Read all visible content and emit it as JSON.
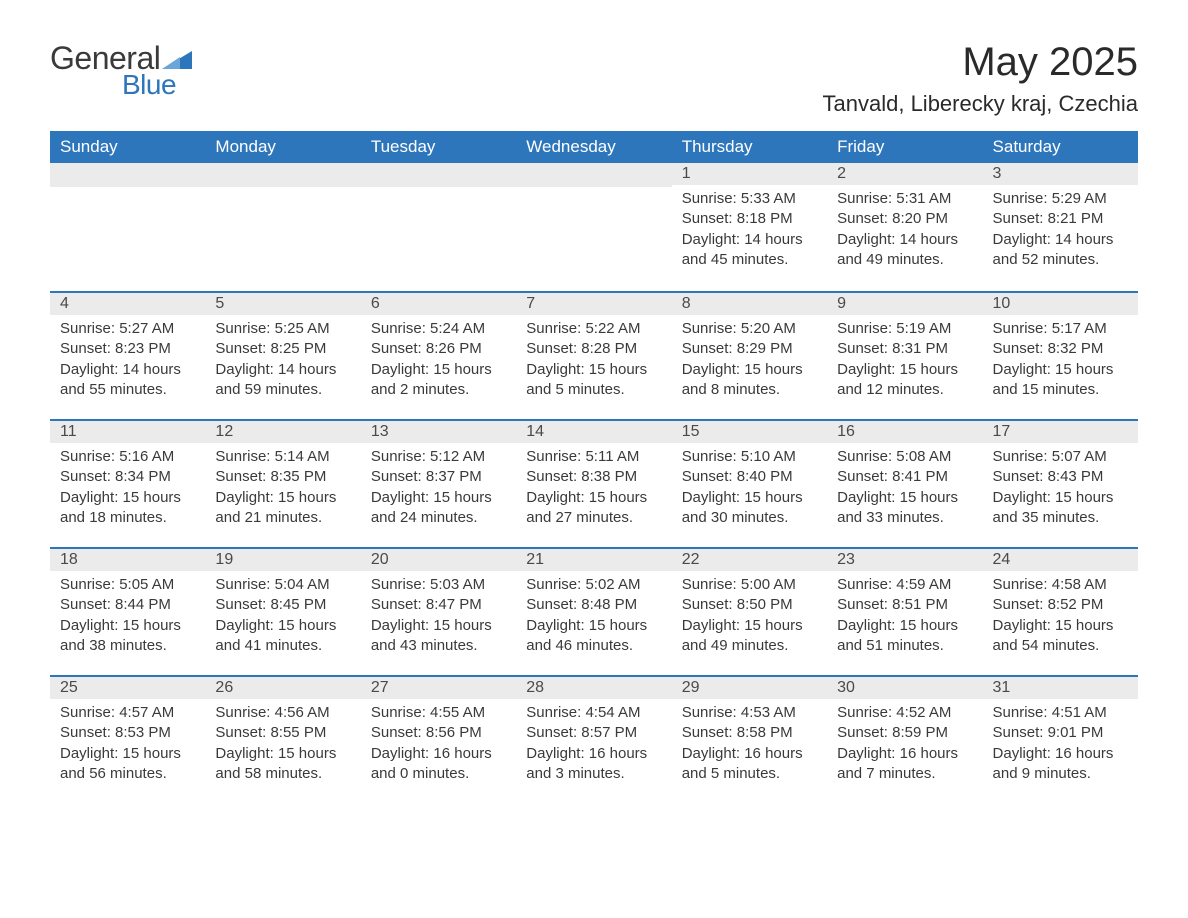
{
  "brand": {
    "name_part1": "General",
    "name_part2": "Blue",
    "text_color": "#3a3a3a",
    "accent_color": "#2d76bb"
  },
  "title": "May 2025",
  "location": "Tanvald, Liberecky kraj, Czechia",
  "colors": {
    "header_bg": "#2d76bb",
    "header_text": "#ffffff",
    "daynum_bg": "#ebebeb",
    "row_border": "#2d76bb",
    "body_text": "#3a3a3a",
    "page_bg": "#ffffff"
  },
  "fonts": {
    "title_size_pt": 30,
    "location_size_pt": 17,
    "header_size_pt": 13,
    "day_size_pt": 11
  },
  "day_headers": [
    "Sunday",
    "Monday",
    "Tuesday",
    "Wednesday",
    "Thursday",
    "Friday",
    "Saturday"
  ],
  "weeks": [
    [
      {
        "day": "",
        "sunrise": "",
        "sunset": "",
        "daylight": ""
      },
      {
        "day": "",
        "sunrise": "",
        "sunset": "",
        "daylight": ""
      },
      {
        "day": "",
        "sunrise": "",
        "sunset": "",
        "daylight": ""
      },
      {
        "day": "",
        "sunrise": "",
        "sunset": "",
        "daylight": ""
      },
      {
        "day": "1",
        "sunrise": "Sunrise: 5:33 AM",
        "sunset": "Sunset: 8:18 PM",
        "daylight": "Daylight: 14 hours and 45 minutes."
      },
      {
        "day": "2",
        "sunrise": "Sunrise: 5:31 AM",
        "sunset": "Sunset: 8:20 PM",
        "daylight": "Daylight: 14 hours and 49 minutes."
      },
      {
        "day": "3",
        "sunrise": "Sunrise: 5:29 AM",
        "sunset": "Sunset: 8:21 PM",
        "daylight": "Daylight: 14 hours and 52 minutes."
      }
    ],
    [
      {
        "day": "4",
        "sunrise": "Sunrise: 5:27 AM",
        "sunset": "Sunset: 8:23 PM",
        "daylight": "Daylight: 14 hours and 55 minutes."
      },
      {
        "day": "5",
        "sunrise": "Sunrise: 5:25 AM",
        "sunset": "Sunset: 8:25 PM",
        "daylight": "Daylight: 14 hours and 59 minutes."
      },
      {
        "day": "6",
        "sunrise": "Sunrise: 5:24 AM",
        "sunset": "Sunset: 8:26 PM",
        "daylight": "Daylight: 15 hours and 2 minutes."
      },
      {
        "day": "7",
        "sunrise": "Sunrise: 5:22 AM",
        "sunset": "Sunset: 8:28 PM",
        "daylight": "Daylight: 15 hours and 5 minutes."
      },
      {
        "day": "8",
        "sunrise": "Sunrise: 5:20 AM",
        "sunset": "Sunset: 8:29 PM",
        "daylight": "Daylight: 15 hours and 8 minutes."
      },
      {
        "day": "9",
        "sunrise": "Sunrise: 5:19 AM",
        "sunset": "Sunset: 8:31 PM",
        "daylight": "Daylight: 15 hours and 12 minutes."
      },
      {
        "day": "10",
        "sunrise": "Sunrise: 5:17 AM",
        "sunset": "Sunset: 8:32 PM",
        "daylight": "Daylight: 15 hours and 15 minutes."
      }
    ],
    [
      {
        "day": "11",
        "sunrise": "Sunrise: 5:16 AM",
        "sunset": "Sunset: 8:34 PM",
        "daylight": "Daylight: 15 hours and 18 minutes."
      },
      {
        "day": "12",
        "sunrise": "Sunrise: 5:14 AM",
        "sunset": "Sunset: 8:35 PM",
        "daylight": "Daylight: 15 hours and 21 minutes."
      },
      {
        "day": "13",
        "sunrise": "Sunrise: 5:12 AM",
        "sunset": "Sunset: 8:37 PM",
        "daylight": "Daylight: 15 hours and 24 minutes."
      },
      {
        "day": "14",
        "sunrise": "Sunrise: 5:11 AM",
        "sunset": "Sunset: 8:38 PM",
        "daylight": "Daylight: 15 hours and 27 minutes."
      },
      {
        "day": "15",
        "sunrise": "Sunrise: 5:10 AM",
        "sunset": "Sunset: 8:40 PM",
        "daylight": "Daylight: 15 hours and 30 minutes."
      },
      {
        "day": "16",
        "sunrise": "Sunrise: 5:08 AM",
        "sunset": "Sunset: 8:41 PM",
        "daylight": "Daylight: 15 hours and 33 minutes."
      },
      {
        "day": "17",
        "sunrise": "Sunrise: 5:07 AM",
        "sunset": "Sunset: 8:43 PM",
        "daylight": "Daylight: 15 hours and 35 minutes."
      }
    ],
    [
      {
        "day": "18",
        "sunrise": "Sunrise: 5:05 AM",
        "sunset": "Sunset: 8:44 PM",
        "daylight": "Daylight: 15 hours and 38 minutes."
      },
      {
        "day": "19",
        "sunrise": "Sunrise: 5:04 AM",
        "sunset": "Sunset: 8:45 PM",
        "daylight": "Daylight: 15 hours and 41 minutes."
      },
      {
        "day": "20",
        "sunrise": "Sunrise: 5:03 AM",
        "sunset": "Sunset: 8:47 PM",
        "daylight": "Daylight: 15 hours and 43 minutes."
      },
      {
        "day": "21",
        "sunrise": "Sunrise: 5:02 AM",
        "sunset": "Sunset: 8:48 PM",
        "daylight": "Daylight: 15 hours and 46 minutes."
      },
      {
        "day": "22",
        "sunrise": "Sunrise: 5:00 AM",
        "sunset": "Sunset: 8:50 PM",
        "daylight": "Daylight: 15 hours and 49 minutes."
      },
      {
        "day": "23",
        "sunrise": "Sunrise: 4:59 AM",
        "sunset": "Sunset: 8:51 PM",
        "daylight": "Daylight: 15 hours and 51 minutes."
      },
      {
        "day": "24",
        "sunrise": "Sunrise: 4:58 AM",
        "sunset": "Sunset: 8:52 PM",
        "daylight": "Daylight: 15 hours and 54 minutes."
      }
    ],
    [
      {
        "day": "25",
        "sunrise": "Sunrise: 4:57 AM",
        "sunset": "Sunset: 8:53 PM",
        "daylight": "Daylight: 15 hours and 56 minutes."
      },
      {
        "day": "26",
        "sunrise": "Sunrise: 4:56 AM",
        "sunset": "Sunset: 8:55 PM",
        "daylight": "Daylight: 15 hours and 58 minutes."
      },
      {
        "day": "27",
        "sunrise": "Sunrise: 4:55 AM",
        "sunset": "Sunset: 8:56 PM",
        "daylight": "Daylight: 16 hours and 0 minutes."
      },
      {
        "day": "28",
        "sunrise": "Sunrise: 4:54 AM",
        "sunset": "Sunset: 8:57 PM",
        "daylight": "Daylight: 16 hours and 3 minutes."
      },
      {
        "day": "29",
        "sunrise": "Sunrise: 4:53 AM",
        "sunset": "Sunset: 8:58 PM",
        "daylight": "Daylight: 16 hours and 5 minutes."
      },
      {
        "day": "30",
        "sunrise": "Sunrise: 4:52 AM",
        "sunset": "Sunset: 8:59 PM",
        "daylight": "Daylight: 16 hours and 7 minutes."
      },
      {
        "day": "31",
        "sunrise": "Sunrise: 4:51 AM",
        "sunset": "Sunset: 9:01 PM",
        "daylight": "Daylight: 16 hours and 9 minutes."
      }
    ]
  ]
}
